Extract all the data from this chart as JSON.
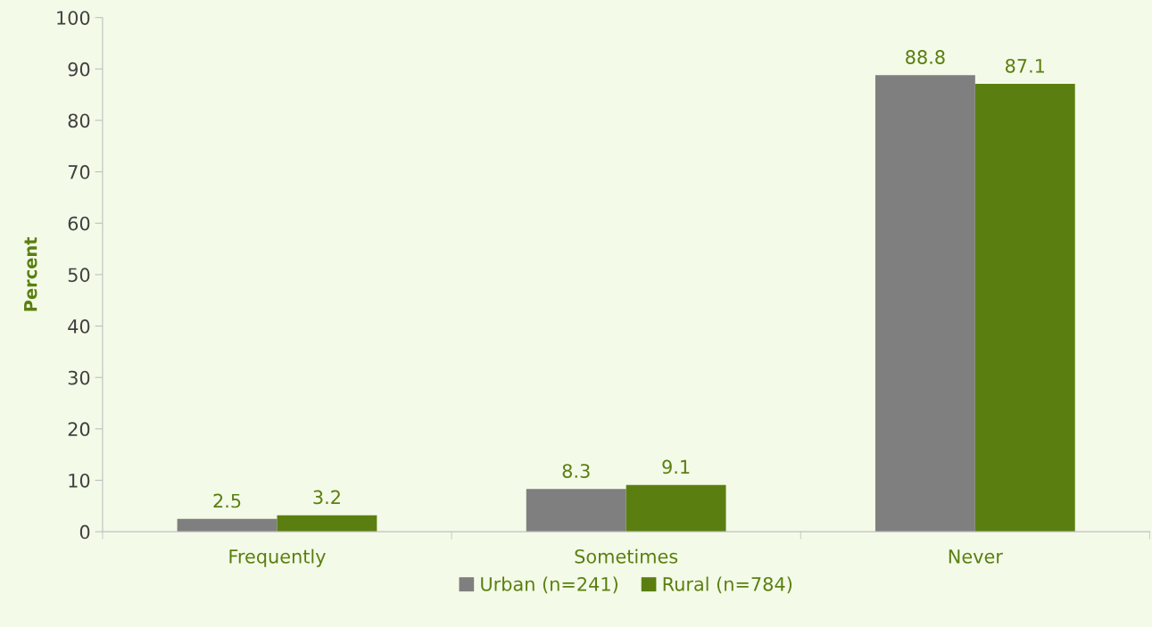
{
  "chart_data": {
    "type": "bar",
    "ylabel": "Percent",
    "categories": [
      "Frequently",
      "Sometimes",
      "Never"
    ],
    "series": [
      {
        "name": "Urban (n=241)",
        "color": "#7f7f7f",
        "values": [
          2.5,
          8.3,
          88.8
        ]
      },
      {
        "name": "Rural (n=784)",
        "color": "#5a7f10",
        "values": [
          3.2,
          9.1,
          87.1
        ]
      }
    ],
    "ylim": [
      0,
      100
    ],
    "yticks": [
      0,
      10,
      20,
      30,
      40,
      50,
      60,
      70,
      80,
      90,
      100
    ],
    "data_labels": true,
    "grid": false,
    "legend": "bottom"
  }
}
